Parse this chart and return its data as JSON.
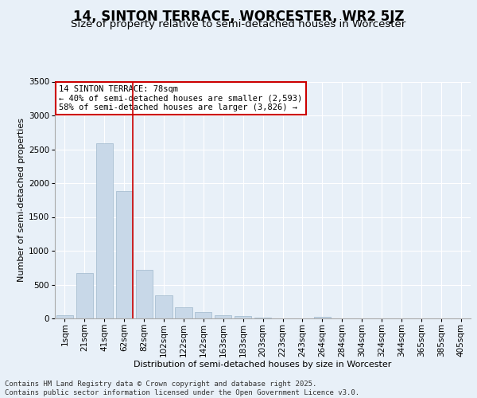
{
  "title": "14, SINTON TERRACE, WORCESTER, WR2 5JZ",
  "subtitle": "Size of property relative to semi-detached houses in Worcester",
  "xlabel": "Distribution of semi-detached houses by size in Worcester",
  "ylabel": "Number of semi-detached properties",
  "categories": [
    "1sqm",
    "21sqm",
    "41sqm",
    "62sqm",
    "82sqm",
    "102sqm",
    "122sqm",
    "142sqm",
    "163sqm",
    "183sqm",
    "203sqm",
    "223sqm",
    "243sqm",
    "264sqm",
    "284sqm",
    "304sqm",
    "324sqm",
    "344sqm",
    "365sqm",
    "385sqm",
    "405sqm"
  ],
  "values": [
    50,
    670,
    2590,
    1880,
    720,
    340,
    170,
    100,
    45,
    30,
    15,
    3,
    0,
    25,
    0,
    0,
    0,
    0,
    0,
    0,
    0
  ],
  "bar_color": "#c8d8e8",
  "bar_edgecolor": "#a0b8cc",
  "vline_color": "#cc0000",
  "vline_bin_index": 3,
  "annotation_text": "14 SINTON TERRACE: 78sqm\n← 40% of semi-detached houses are smaller (2,593)\n58% of semi-detached houses are larger (3,826) →",
  "annotation_box_edgecolor": "#cc0000",
  "footnote": "Contains HM Land Registry data © Crown copyright and database right 2025.\nContains public sector information licensed under the Open Government Licence v3.0.",
  "background_color": "#e8f0f8",
  "ylim": [
    0,
    3500
  ],
  "yticks": [
    0,
    500,
    1000,
    1500,
    2000,
    2500,
    3000,
    3500
  ],
  "title_fontsize": 12,
  "subtitle_fontsize": 9.5,
  "axis_label_fontsize": 8,
  "tick_fontsize": 7.5,
  "annotation_fontsize": 7.5,
  "footnote_fontsize": 6.5
}
